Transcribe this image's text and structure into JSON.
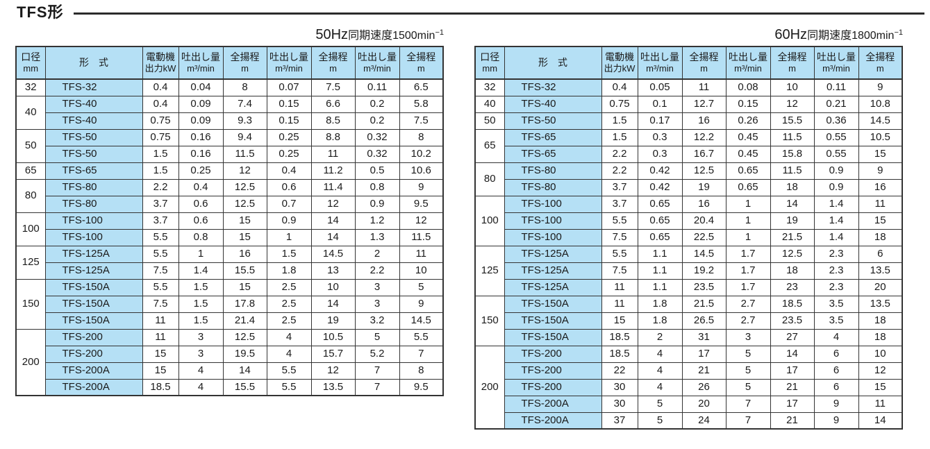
{
  "page": {
    "title": "TFS形"
  },
  "colors": {
    "header_bg": "#b5e0f5",
    "border": "#333333",
    "dashed_divider": "#8f8f8f",
    "text": "#1a1a1a"
  },
  "columns": [
    {
      "top": "口径",
      "bottom": "mm"
    },
    {
      "top": "形　式",
      "bottom": ""
    },
    {
      "top": "電動機",
      "bottom": "出力kW"
    },
    {
      "top": "吐出し量",
      "bottom": "m³/min"
    },
    {
      "top": "全揚程",
      "bottom": "m"
    },
    {
      "top": "吐出し量",
      "bottom": "m³/min"
    },
    {
      "top": "全揚程",
      "bottom": "m"
    },
    {
      "top": "吐出し量",
      "bottom": "m³/min"
    },
    {
      "top": "全揚程",
      "bottom": "m"
    }
  ],
  "tables": [
    {
      "id": "50hz",
      "caption": {
        "hz": "50Hz",
        "text": "同期速度1500min",
        "sup": "−1"
      },
      "groups": [
        {
          "bore": "32",
          "rows": [
            [
              "TFS-32",
              "0.4",
              "0.04",
              "8",
              "0.07",
              "7.5",
              "0.11",
              "6.5"
            ]
          ]
        },
        {
          "bore": "40",
          "rows": [
            [
              "TFS-40",
              "0.4",
              "0.09",
              "7.4",
              "0.15",
              "6.6",
              "0.2",
              "5.8"
            ],
            [
              "TFS-40",
              "0.75",
              "0.09",
              "9.3",
              "0.15",
              "8.5",
              "0.2",
              "7.5"
            ]
          ]
        },
        {
          "bore": "50",
          "rows": [
            [
              "TFS-50",
              "0.75",
              "0.16",
              "9.4",
              "0.25",
              "8.8",
              "0.32",
              "8"
            ],
            [
              "TFS-50",
              "1.5",
              "0.16",
              "11.5",
              "0.25",
              "11",
              "0.32",
              "10.2"
            ]
          ]
        },
        {
          "bore": "65",
          "rows": [
            [
              "TFS-65",
              "1.5",
              "0.25",
              "12",
              "0.4",
              "11.2",
              "0.5",
              "10.6"
            ]
          ]
        },
        {
          "bore": "80",
          "rows": [
            [
              "TFS-80",
              "2.2",
              "0.4",
              "12.5",
              "0.6",
              "11.4",
              "0.8",
              "9"
            ],
            [
              "TFS-80",
              "3.7",
              "0.6",
              "12.5",
              "0.7",
              "12",
              "0.9",
              "9.5"
            ]
          ]
        },
        {
          "bore": "100",
          "rows": [
            [
              "TFS-100",
              "3.7",
              "0.6",
              "15",
              "0.9",
              "14",
              "1.2",
              "12"
            ],
            [
              "TFS-100",
              "5.5",
              "0.8",
              "15",
              "1",
              "14",
              "1.3",
              "11.5"
            ]
          ]
        },
        {
          "bore": "125",
          "rows": [
            [
              "TFS-125A",
              "5.5",
              "1",
              "16",
              "1.5",
              "14.5",
              "2",
              "11"
            ],
            [
              "TFS-125A",
              "7.5",
              "1.4",
              "15.5",
              "1.8",
              "13",
              "2.2",
              "10"
            ]
          ]
        },
        {
          "bore": "150",
          "rows": [
            [
              "TFS-150A",
              "5.5",
              "1.5",
              "15",
              "2.5",
              "10",
              "3",
              "5"
            ],
            [
              "TFS-150A",
              "7.5",
              "1.5",
              "17.8",
              "2.5",
              "14",
              "3",
              "9"
            ],
            [
              "TFS-150A",
              "11",
              "1.5",
              "21.4",
              "2.5",
              "19",
              "3.2",
              "14.5"
            ]
          ]
        },
        {
          "bore": "200",
          "rows": [
            [
              "TFS-200",
              "11",
              "3",
              "12.5",
              "4",
              "10.5",
              "5",
              "5.5"
            ],
            [
              "TFS-200",
              "15",
              "3",
              "19.5",
              "4",
              "15.7",
              "5.2",
              "7"
            ],
            [
              "TFS-200A",
              "15",
              "4",
              "14",
              "5.5",
              "12",
              "7",
              "8"
            ],
            [
              "TFS-200A",
              "18.5",
              "4",
              "15.5",
              "5.5",
              "13.5",
              "7",
              "9.5"
            ]
          ]
        }
      ]
    },
    {
      "id": "60hz",
      "caption": {
        "hz": "60Hz",
        "text": "同期速度1800min",
        "sup": "−1"
      },
      "groups": [
        {
          "bore": "32",
          "rows": [
            [
              "TFS-32",
              "0.4",
              "0.05",
              "11",
              "0.08",
              "10",
              "0.11",
              "9"
            ]
          ]
        },
        {
          "bore": "40",
          "rows": [
            [
              "TFS-40",
              "0.75",
              "0.1",
              "12.7",
              "0.15",
              "12",
              "0.21",
              "10.8"
            ]
          ]
        },
        {
          "bore": "50",
          "rows": [
            [
              "TFS-50",
              "1.5",
              "0.17",
              "16",
              "0.26",
              "15.5",
              "0.36",
              "14.5"
            ]
          ]
        },
        {
          "bore": "65",
          "rows": [
            [
              "TFS-65",
              "1.5",
              "0.3",
              "12.2",
              "0.45",
              "11.5",
              "0.55",
              "10.5"
            ],
            [
              "TFS-65",
              "2.2",
              "0.3",
              "16.7",
              "0.45",
              "15.8",
              "0.55",
              "15"
            ]
          ]
        },
        {
          "bore": "80",
          "rows": [
            [
              "TFS-80",
              "2.2",
              "0.42",
              "12.5",
              "0.65",
              "11.5",
              "0.9",
              "9"
            ],
            [
              "TFS-80",
              "3.7",
              "0.42",
              "19",
              "0.65",
              "18",
              "0.9",
              "16"
            ]
          ]
        },
        {
          "bore": "100",
          "rows": [
            [
              "TFS-100",
              "3.7",
              "0.65",
              "16",
              "1",
              "14",
              "1.4",
              "11"
            ],
            [
              "TFS-100",
              "5.5",
              "0.65",
              "20.4",
              "1",
              "19",
              "1.4",
              "15"
            ],
            [
              "TFS-100",
              "7.5",
              "0.65",
              "22.5",
              "1",
              "21.5",
              "1.4",
              "18"
            ]
          ]
        },
        {
          "bore": "125",
          "rows": [
            [
              "TFS-125A",
              "5.5",
              "1.1",
              "14.5",
              "1.7",
              "12.5",
              "2.3",
              "6"
            ],
            [
              "TFS-125A",
              "7.5",
              "1.1",
              "19.2",
              "1.7",
              "18",
              "2.3",
              "13.5"
            ],
            [
              "TFS-125A",
              "11",
              "1.1",
              "23.5",
              "1.7",
              "23",
              "2.3",
              "20"
            ]
          ]
        },
        {
          "bore": "150",
          "rows": [
            [
              "TFS-150A",
              "11",
              "1.8",
              "21.5",
              "2.7",
              "18.5",
              "3.5",
              "13.5"
            ],
            [
              "TFS-150A",
              "15",
              "1.8",
              "26.5",
              "2.7",
              "23.5",
              "3.5",
              "18"
            ],
            [
              "TFS-150A",
              "18.5",
              "2",
              "31",
              "3",
              "27",
              "4",
              "18"
            ]
          ]
        },
        {
          "bore": "200",
          "rows": [
            [
              "TFS-200",
              "18.5",
              "4",
              "17",
              "5",
              "14",
              "6",
              "10"
            ],
            [
              "TFS-200",
              "22",
              "4",
              "21",
              "5",
              "17",
              "6",
              "12"
            ],
            [
              "TFS-200",
              "30",
              "4",
              "26",
              "5",
              "21",
              "6",
              "15"
            ],
            [
              "TFS-200A",
              "30",
              "5",
              "20",
              "7",
              "17",
              "9",
              "11"
            ],
            [
              "TFS-200A",
              "37",
              "5",
              "24",
              "7",
              "21",
              "9",
              "14"
            ]
          ]
        }
      ]
    }
  ]
}
